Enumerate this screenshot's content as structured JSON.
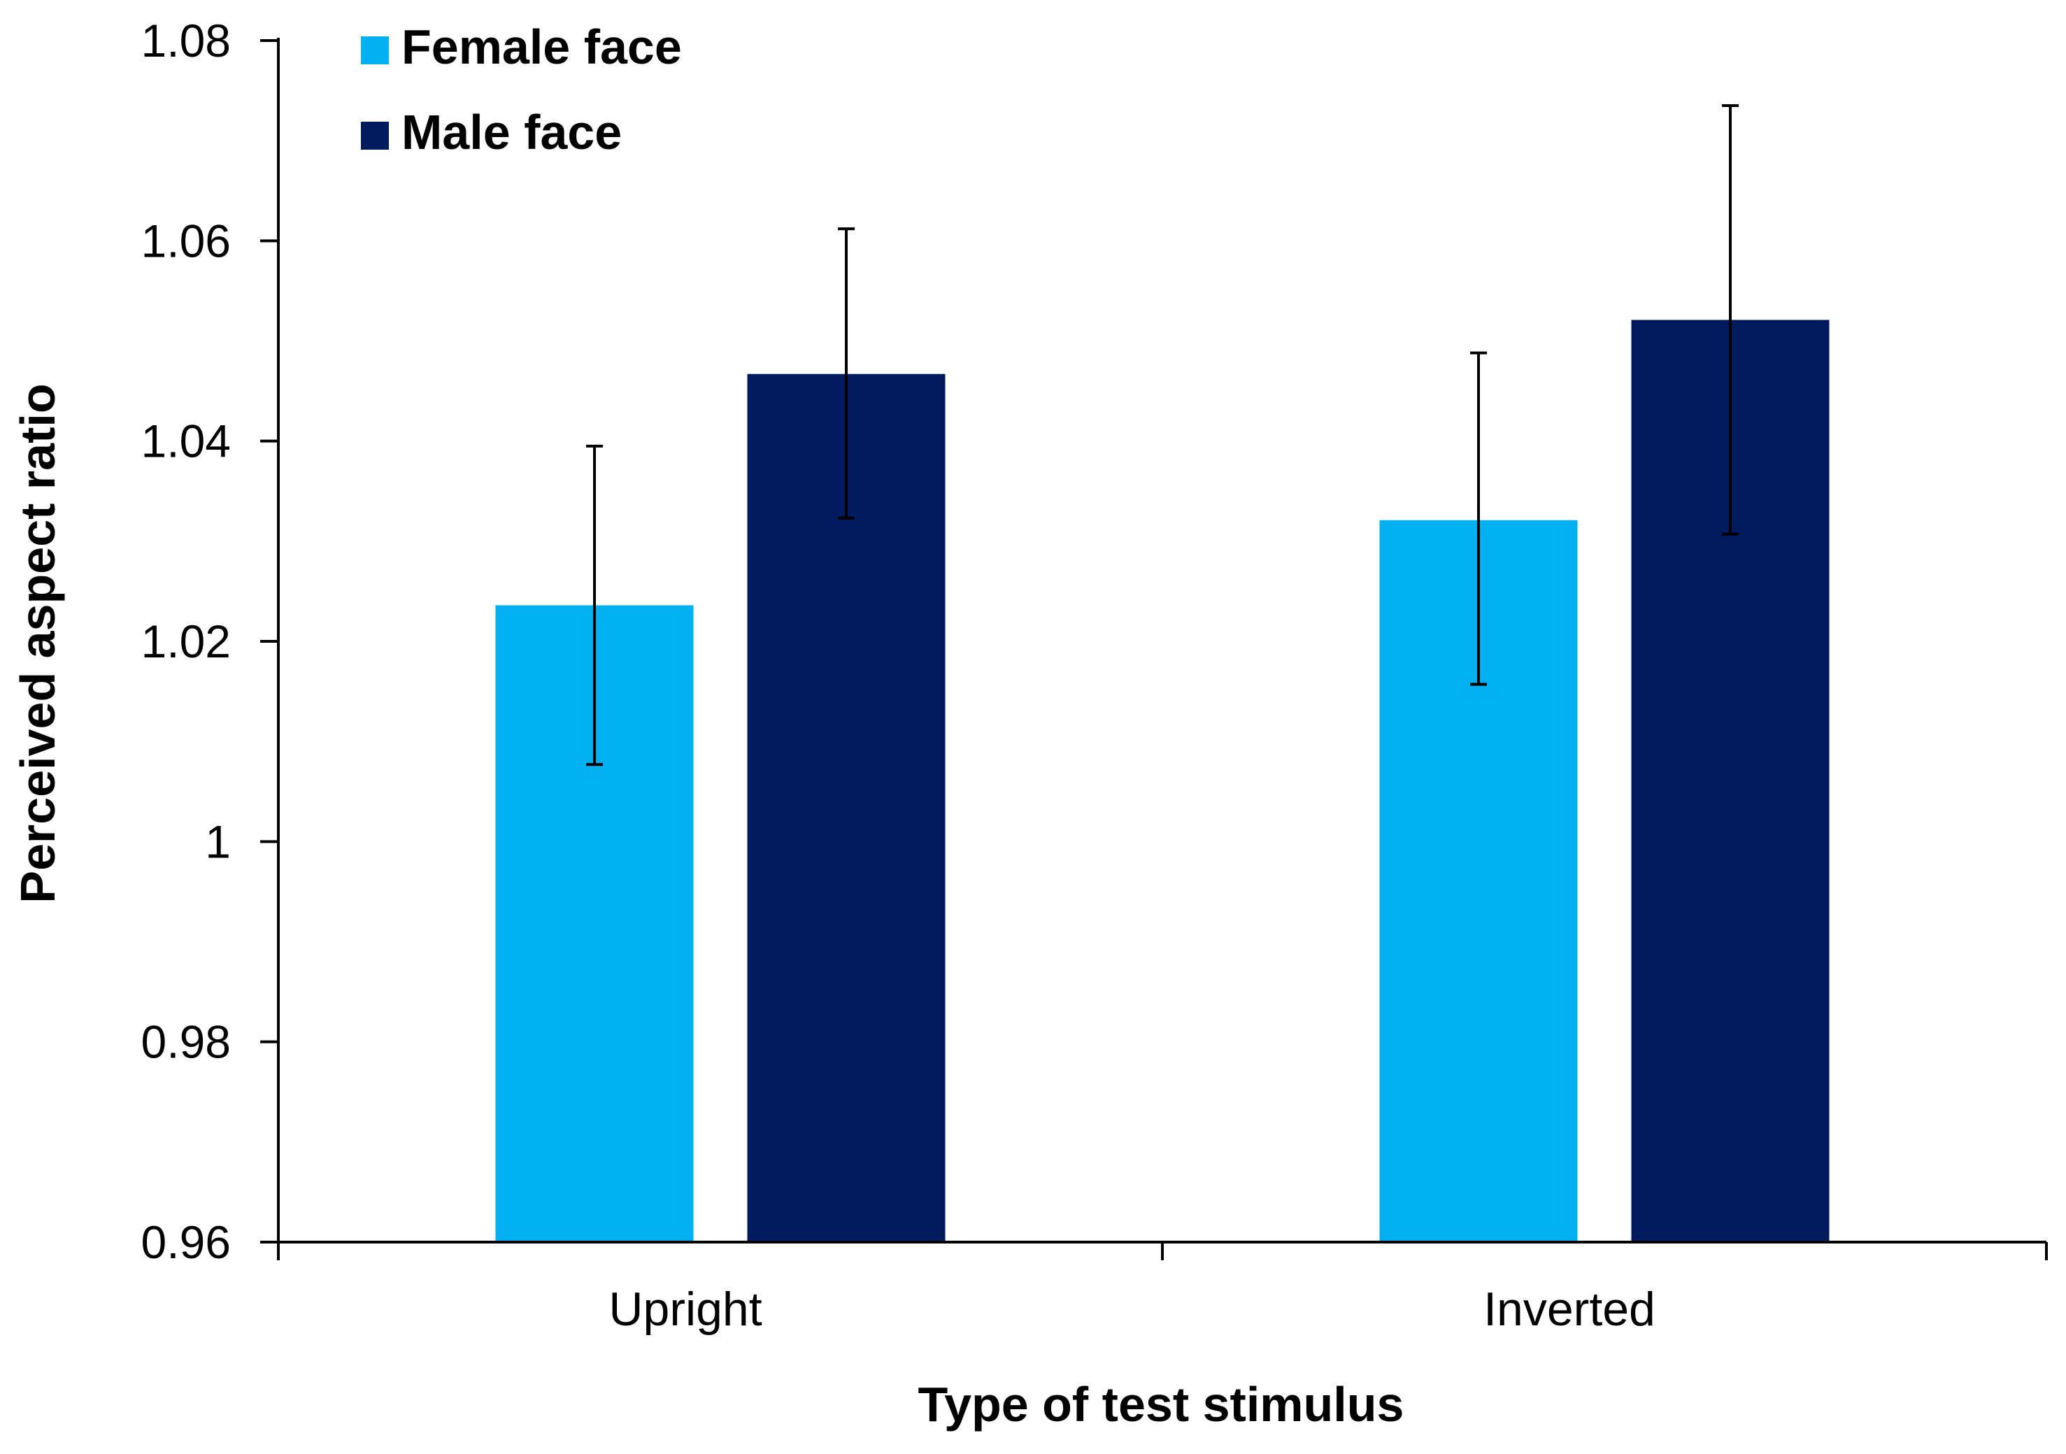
{
  "chart_data": {
    "type": "bar",
    "title": "",
    "xlabel": "Type of test stimulus",
    "ylabel": "Perceived aspect ratio",
    "categories": [
      "Upright",
      "Inverted"
    ],
    "ylim": [
      0.96,
      1.08
    ],
    "yticks": [
      0.96,
      0.98,
      1,
      1.02,
      1.04,
      1.06,
      1.08
    ],
    "ytick_labels": [
      "0.96",
      "0.98",
      "1",
      "1.02",
      "1.04",
      "1.06",
      "1.08"
    ],
    "grid": false,
    "legend_position": "top-left",
    "series": [
      {
        "name": "Female face",
        "color": "#00b0f0",
        "values": [
          1.0236,
          1.0321
        ],
        "error_low": [
          1.0077,
          1.0157
        ],
        "error_high": [
          1.0395,
          1.0488
        ]
      },
      {
        "name": "Male face",
        "color": "#001a5e",
        "values": [
          1.0467,
          1.0521
        ],
        "error_low": [
          1.0323,
          1.0307
        ],
        "error_high": [
          1.0612,
          1.0735
        ]
      }
    ]
  }
}
